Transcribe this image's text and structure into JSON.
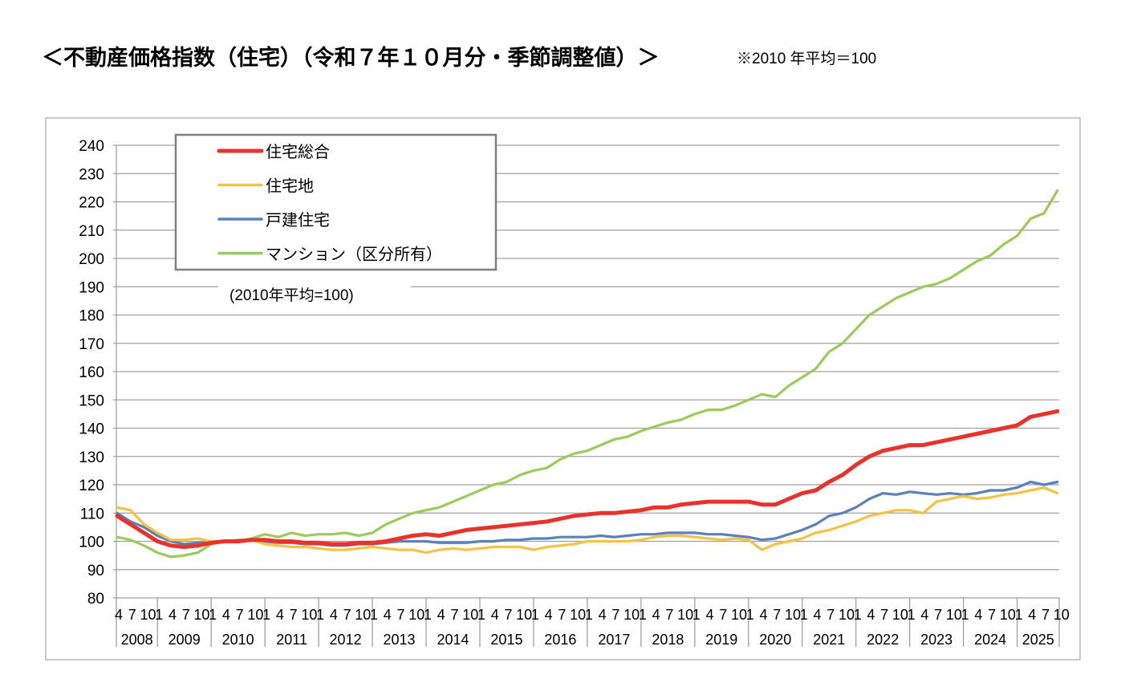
{
  "title": "＜不動産価格指数（住宅）（令和７年１０月分・季節調整値）＞",
  "note": "※2010 年平均＝100",
  "chart_data": {
    "type": "line",
    "title": "＜不動産価格指数（住宅）（令和７年１０月分・季節調整値）＞",
    "subtitle": "(2010年平均=100)",
    "xlabel": "",
    "ylabel": "",
    "ylim": [
      80,
      240
    ],
    "yticks": [
      80,
      90,
      100,
      110,
      120,
      130,
      140,
      150,
      160,
      170,
      180,
      190,
      200,
      210,
      220,
      230,
      240
    ],
    "grid": true,
    "legend_placement": "top-left",
    "x_range": [
      "2008-04",
      "2025-10"
    ],
    "month_tick_labels": [
      "1",
      "4",
      "7",
      "10"
    ],
    "year_labels": [
      "2008",
      "2009",
      "2010",
      "2011",
      "2012",
      "2013",
      "2014",
      "2015",
      "2016",
      "2017",
      "2018",
      "2019",
      "2020",
      "2021",
      "2022",
      "2023",
      "2024",
      "2025"
    ],
    "x": [
      "2008-04",
      "2008-07",
      "2008-10",
      "2009-01",
      "2009-04",
      "2009-07",
      "2009-10",
      "2010-01",
      "2010-04",
      "2010-07",
      "2010-10",
      "2011-01",
      "2011-04",
      "2011-07",
      "2011-10",
      "2012-01",
      "2012-04",
      "2012-07",
      "2012-10",
      "2013-01",
      "2013-04",
      "2013-07",
      "2013-10",
      "2014-01",
      "2014-04",
      "2014-07",
      "2014-10",
      "2015-01",
      "2015-04",
      "2015-07",
      "2015-10",
      "2016-01",
      "2016-04",
      "2016-07",
      "2016-10",
      "2017-01",
      "2017-04",
      "2017-07",
      "2017-10",
      "2018-01",
      "2018-04",
      "2018-07",
      "2018-10",
      "2019-01",
      "2019-04",
      "2019-07",
      "2019-10",
      "2020-01",
      "2020-04",
      "2020-07",
      "2020-10",
      "2021-01",
      "2021-04",
      "2021-07",
      "2021-10",
      "2022-01",
      "2022-04",
      "2022-07",
      "2022-10",
      "2023-01",
      "2023-04",
      "2023-07",
      "2023-10",
      "2024-01",
      "2024-04",
      "2024-07",
      "2024-10",
      "2025-01",
      "2025-04",
      "2025-07",
      "2025-10"
    ],
    "series": [
      {
        "name": "住宅総合",
        "color": "#E8322A",
        "values": [
          109,
          106,
          103,
          100,
          98.5,
          98,
          98.5,
          99.5,
          100,
          100,
          100.5,
          100.5,
          100,
          100,
          99.5,
          99.5,
          99,
          99,
          99.5,
          99.5,
          100,
          101,
          102,
          102.5,
          102,
          103,
          104,
          104.5,
          105,
          105.5,
          106,
          106.5,
          107,
          108,
          109,
          109.5,
          110,
          110,
          110.5,
          111,
          112,
          112,
          113,
          113.5,
          114,
          114,
          114,
          114,
          113,
          113,
          115,
          117,
          118,
          121,
          123.5,
          127,
          130,
          132,
          133,
          134,
          134,
          135,
          136,
          137,
          138,
          139,
          140,
          141,
          144,
          145,
          146
        ]
      },
      {
        "name": "住宅地",
        "color": "#F6C243",
        "values": [
          112,
          111,
          106,
          103,
          100.5,
          100.5,
          101,
          100,
          100,
          100.5,
          100.5,
          99,
          98.5,
          98,
          98,
          97.5,
          97,
          97,
          97.5,
          98,
          97.5,
          97,
          97,
          96,
          97,
          97.5,
          97,
          97.5,
          98,
          98,
          98,
          97,
          98,
          98.5,
          99,
          100,
          100,
          100,
          100,
          100.5,
          101.5,
          102,
          102,
          101.5,
          101,
          100.5,
          101,
          100.5,
          97,
          99,
          100,
          101,
          103,
          104,
          105.5,
          107,
          109,
          110,
          111,
          111,
          110,
          114,
          115,
          116,
          115,
          115.5,
          116.5,
          117,
          118,
          119,
          117
        ]
      },
      {
        "name": "戸建住宅",
        "color": "#5B80BE",
        "values": [
          110,
          107,
          105,
          102,
          100,
          99,
          99.5,
          99.5,
          100,
          100.5,
          100.5,
          100,
          99.5,
          99.5,
          99,
          99,
          98.5,
          98.5,
          99,
          99,
          99.5,
          100,
          100,
          100,
          99.5,
          99.5,
          99.5,
          100,
          100,
          100.5,
          100.5,
          101,
          101,
          101.5,
          101.5,
          101.5,
          102,
          101.5,
          102,
          102.5,
          102.5,
          103,
          103,
          103,
          102.5,
          102.5,
          102,
          101.5,
          100.5,
          101,
          102.5,
          104,
          106,
          109,
          110,
          112,
          115,
          117,
          116.5,
          117.5,
          117,
          116.5,
          117,
          116.5,
          117,
          118,
          118,
          119,
          121,
          120,
          121
        ]
      },
      {
        "name": "マンション（区分所有）",
        "color": "#9BCB5B",
        "values": [
          101.5,
          100.5,
          98.5,
          96,
          94.5,
          95,
          96,
          99,
          100,
          100,
          101,
          102.5,
          101.5,
          103,
          102,
          102.5,
          102.5,
          103,
          102,
          103,
          106,
          108,
          110,
          111,
          112,
          114,
          116,
          118,
          120,
          121,
          123.5,
          125,
          126,
          129,
          131,
          132,
          134,
          136,
          137,
          139,
          140.5,
          142,
          143,
          145,
          146.5,
          146.5,
          148,
          150,
          152,
          151,
          155,
          158,
          161,
          167,
          170,
          175,
          180,
          183,
          186,
          188,
          190,
          191,
          193,
          196,
          199,
          201,
          205,
          208,
          214,
          216,
          224
        ]
      }
    ]
  }
}
